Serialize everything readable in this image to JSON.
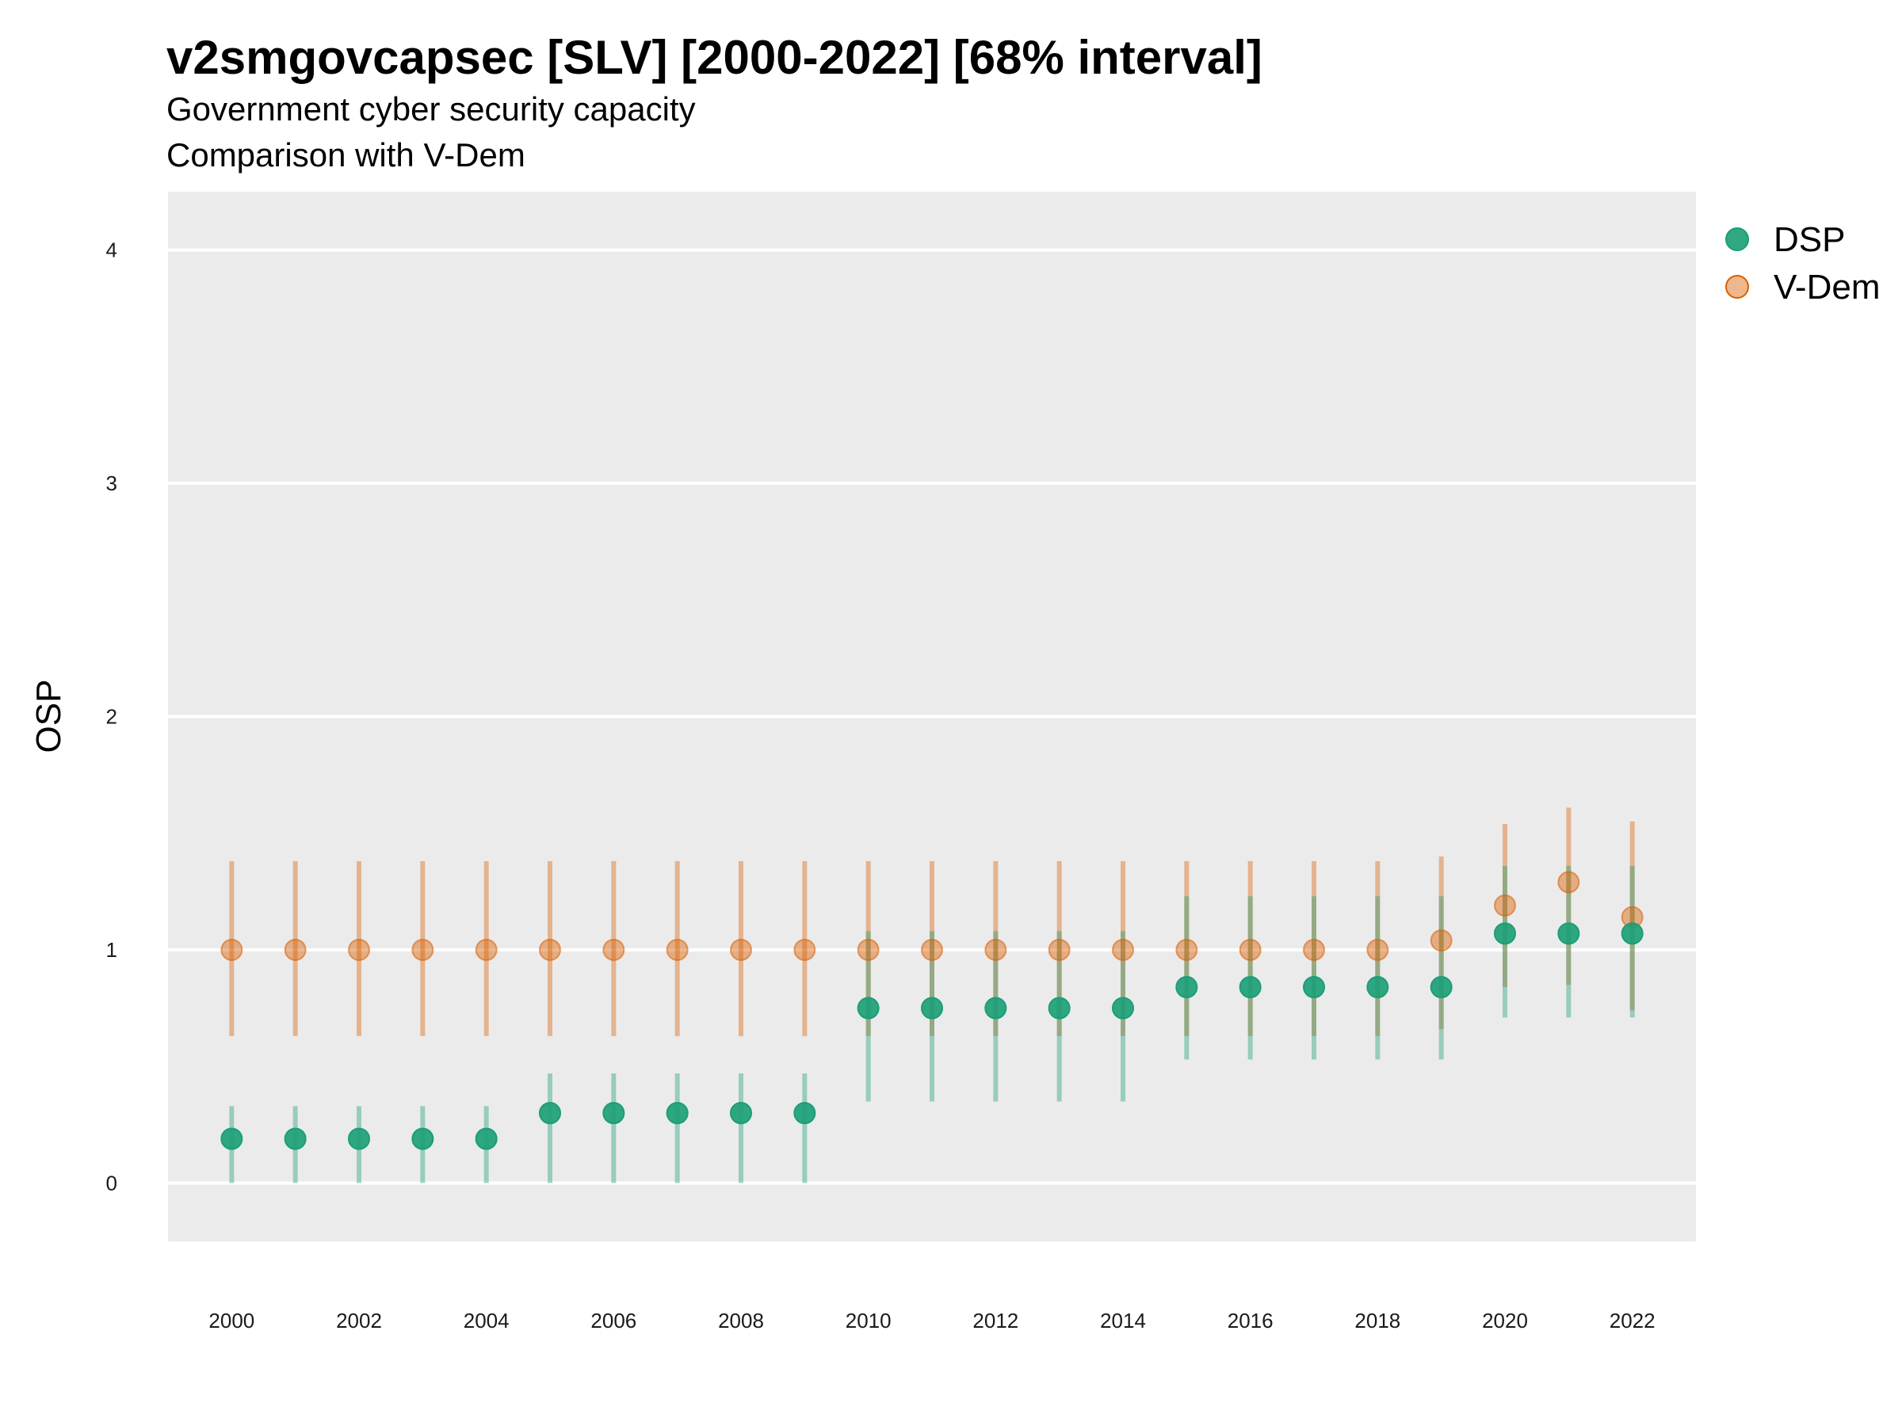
{
  "chart_data": {
    "type": "scatter",
    "title": "v2smgovcapsec [SLV] [2000-2022] [68% interval]",
    "subtitle": "Government cyber security capacity",
    "subtitle2": "Comparison with V-Dem",
    "xlabel": "",
    "ylabel": "OSP",
    "xlim": [
      1999,
      2023
    ],
    "ylim": [
      -0.25,
      4.25
    ],
    "x_ticks": [
      "2000",
      "2002",
      "2004",
      "2006",
      "2008",
      "2010",
      "2012",
      "2014",
      "2016",
      "2018",
      "2020",
      "2022"
    ],
    "y_ticks": [
      "0",
      "1",
      "2",
      "3",
      "4"
    ],
    "grid": true,
    "legend_position": "right",
    "x": [
      2000,
      2001,
      2002,
      2003,
      2004,
      2005,
      2006,
      2007,
      2008,
      2009,
      2010,
      2011,
      2012,
      2013,
      2014,
      2015,
      2016,
      2017,
      2018,
      2019,
      2020,
      2021,
      2022
    ],
    "series": [
      {
        "name": "DSP",
        "color": "#1b9e77",
        "values": [
          0.19,
          0.19,
          0.19,
          0.19,
          0.19,
          0.3,
          0.3,
          0.3,
          0.3,
          0.3,
          0.75,
          0.75,
          0.75,
          0.75,
          0.75,
          0.84,
          0.84,
          0.84,
          0.84,
          0.84,
          1.07,
          1.07,
          1.07
        ],
        "lower": [
          0.0,
          0.0,
          0.0,
          0.0,
          0.0,
          0.0,
          0.0,
          0.0,
          0.0,
          0.0,
          0.35,
          0.35,
          0.35,
          0.35,
          0.35,
          0.53,
          0.53,
          0.53,
          0.53,
          0.53,
          0.71,
          0.71,
          0.71
        ],
        "upper": [
          0.33,
          0.33,
          0.33,
          0.33,
          0.33,
          0.47,
          0.47,
          0.47,
          0.47,
          0.47,
          1.08,
          1.08,
          1.08,
          1.08,
          1.08,
          1.23,
          1.23,
          1.23,
          1.23,
          1.23,
          1.36,
          1.36,
          1.36
        ]
      },
      {
        "name": "V-Dem",
        "color": "#d95f02",
        "values": [
          1.0,
          1.0,
          1.0,
          1.0,
          1.0,
          1.0,
          1.0,
          1.0,
          1.0,
          1.0,
          1.0,
          1.0,
          1.0,
          1.0,
          1.0,
          1.0,
          1.0,
          1.0,
          1.0,
          1.04,
          1.19,
          1.29,
          1.14
        ],
        "lower": [
          0.63,
          0.63,
          0.63,
          0.63,
          0.63,
          0.63,
          0.63,
          0.63,
          0.63,
          0.63,
          0.63,
          0.63,
          0.63,
          0.63,
          0.63,
          0.63,
          0.63,
          0.63,
          0.63,
          0.66,
          0.84,
          0.85,
          0.74
        ],
        "upper": [
          1.38,
          1.38,
          1.38,
          1.38,
          1.38,
          1.38,
          1.38,
          1.38,
          1.38,
          1.38,
          1.38,
          1.38,
          1.38,
          1.38,
          1.38,
          1.38,
          1.38,
          1.38,
          1.38,
          1.4,
          1.54,
          1.61,
          1.55
        ]
      }
    ]
  }
}
